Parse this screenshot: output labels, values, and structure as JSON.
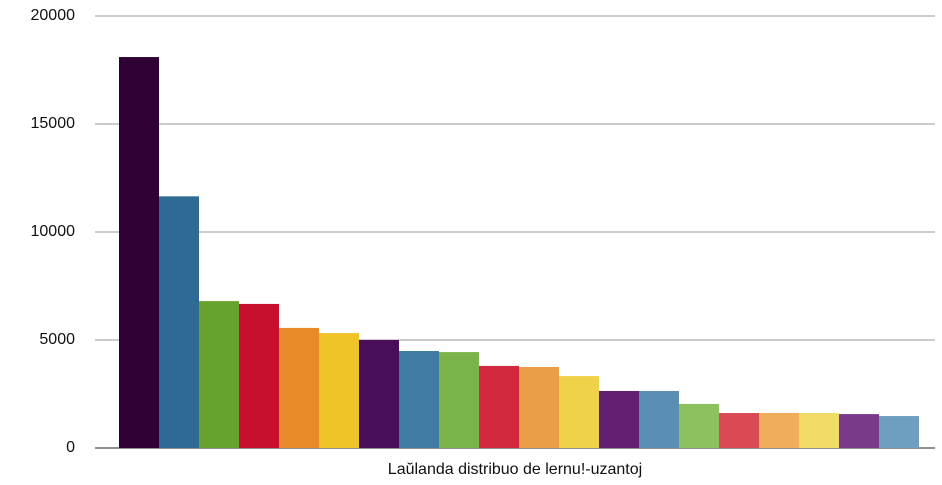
{
  "chart_data": {
    "type": "bar",
    "xlabel": "Laŭlanda distribuo de lernu!-uzantoj",
    "categories": [
      null,
      null,
      null,
      null,
      null,
      null,
      null,
      null,
      null,
      null,
      null,
      null,
      null,
      null,
      null,
      null,
      null,
      null,
      null,
      null
    ],
    "values": [
      18100,
      11650,
      6800,
      6670,
      5560,
      5320,
      5000,
      4490,
      4440,
      3800,
      3750,
      3330,
      2640,
      2640,
      2040,
      1620,
      1620,
      1620,
      1570,
      1480
    ],
    "colors": [
      "#2e0033",
      "#2e6a93",
      "#67a22e",
      "#c8102e",
      "#e8892a",
      "#f0c428",
      "#4a0d57",
      "#3f7ba3",
      "#7ab34a",
      "#d1293d",
      "#eb9e45",
      "#f0d24a",
      "#621e70",
      "#5a8fb3",
      "#8dc05f",
      "#d94a55",
      "#f0ad5c",
      "#f0dc66",
      "#7a3a8a",
      "#6f9fc0"
    ],
    "ylim": [
      0,
      20000
    ],
    "yticks": [
      0,
      5000,
      10000,
      15000,
      20000
    ],
    "grid": true
  }
}
